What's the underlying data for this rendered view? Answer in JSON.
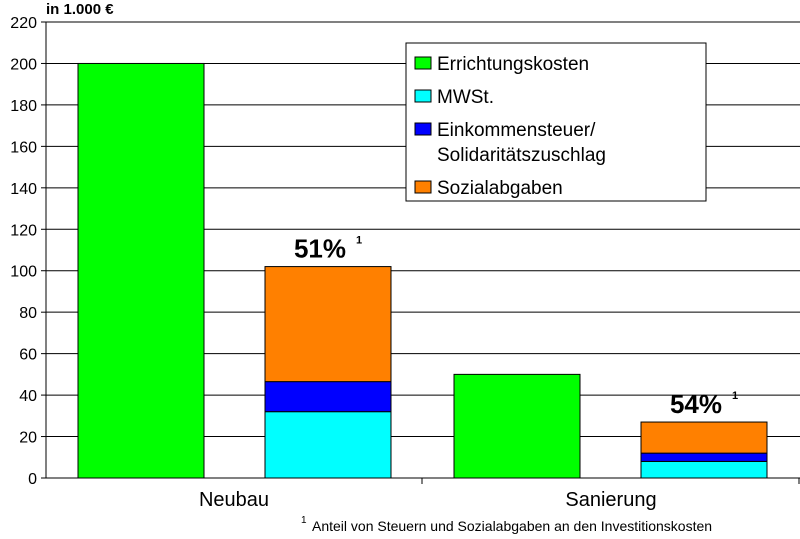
{
  "chart_data": {
    "type": "bar",
    "stacked": true,
    "unit_label": "in 1.000 €",
    "ylim": [
      0,
      220
    ],
    "yticks": [
      0,
      20,
      40,
      60,
      80,
      100,
      120,
      140,
      160,
      180,
      200,
      220
    ],
    "grid": true,
    "legend_position": "top-right",
    "groups": [
      {
        "label": "Neubau",
        "bars": [
          {
            "segments": [
              {
                "series": "Errichtungskosten",
                "value": 200
              }
            ]
          },
          {
            "segments": [
              {
                "series": "MWSt.",
                "value": 32
              },
              {
                "series": "Einkommensteuer/ Solidaritätszuschlag",
                "value": 14.5
              },
              {
                "series": "Sozialabgaben",
                "value": 55.5
              }
            ],
            "annotation": "51%",
            "annotation_sup": "1"
          }
        ]
      },
      {
        "label": "Sanierung",
        "bars": [
          {
            "segments": [
              {
                "series": "Errichtungskosten",
                "value": 50
              }
            ]
          },
          {
            "segments": [
              {
                "series": "MWSt.",
                "value": 8
              },
              {
                "series": "Einkommensteuer/ Solidaritätszuschlag",
                "value": 4
              },
              {
                "series": "Sozialabgaben",
                "value": 15
              }
            ],
            "annotation": "54%",
            "annotation_sup": "1"
          }
        ]
      }
    ],
    "legend": [
      {
        "lines": [
          "Errichtungskosten"
        ],
        "color": "#00ff00"
      },
      {
        "lines": [
          "MWSt."
        ],
        "color": "#00ffff"
      },
      {
        "lines": [
          "Einkommensteuer/",
          "Solidaritätszuschlag"
        ],
        "color": "#0000ff"
      },
      {
        "lines": [
          "Sozialabgaben"
        ],
        "color": "#ff8000"
      }
    ],
    "series_colors": {
      "Errichtungskosten": "#00ff00",
      "MWSt.": "#00ffff",
      "Einkommensteuer/ Solidaritätszuschlag": "#0000ff",
      "Sozialabgaben": "#ff8000"
    },
    "footnote": {
      "sup": "1",
      "text": "Anteil von Steuern und Sozialabgaben an den Investitionskosten"
    }
  }
}
